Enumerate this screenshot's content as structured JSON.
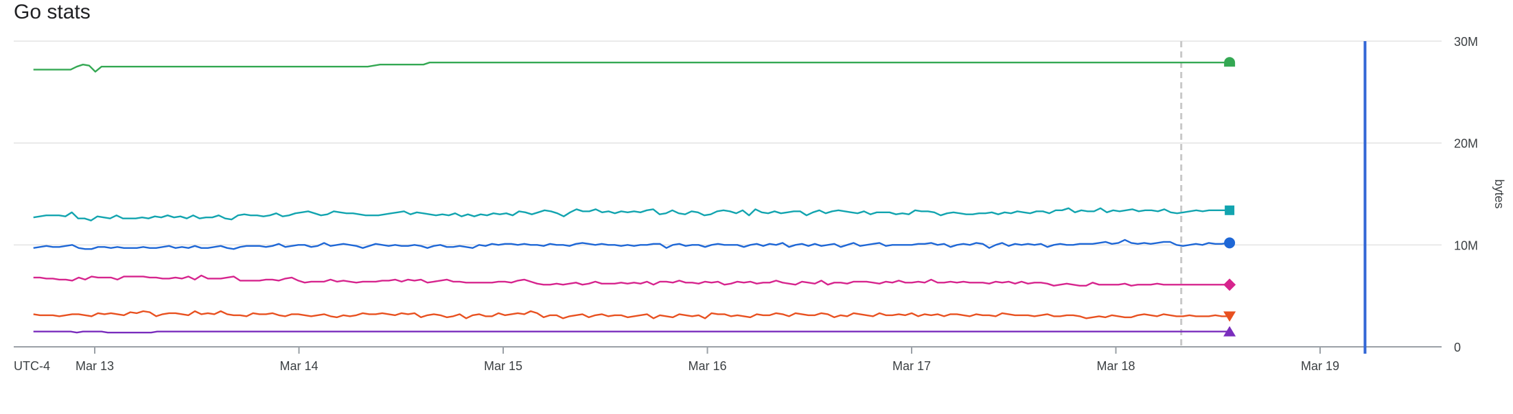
{
  "chart_data": {
    "type": "line",
    "title": "Go stats",
    "ylabel": "bytes",
    "timezone_label": "UTC-4",
    "x_tick_labels": [
      "Mar 13",
      "Mar 14",
      "Mar 15",
      "Mar 16",
      "Mar 17",
      "Mar 18",
      "Mar 19"
    ],
    "y_tick_labels": [
      "0",
      "10M",
      "20M",
      "30M"
    ],
    "ylim": [
      0,
      30000000
    ],
    "grid": true,
    "start_day": 12.7,
    "end_day": 18.55,
    "x_max_day": 19.6,
    "dashed_marker_day": 18.32,
    "current_time_day": 19.22,
    "current_time_color": "#3367d6",
    "series": [
      {
        "color": "#34a853",
        "marker": "semicircle",
        "values": [
          27.2,
          27.2,
          27.2,
          27.2,
          27.2,
          27.2,
          27.2,
          27.5,
          27.7,
          27.6,
          27.0,
          27.5,
          27.5,
          27.5,
          27.5,
          27.5,
          27.5,
          27.5,
          27.5,
          27.5,
          27.5,
          27.5,
          27.5,
          27.5,
          27.5,
          27.5,
          27.5,
          27.5,
          27.5,
          27.5,
          27.5,
          27.5,
          27.5,
          27.5,
          27.5,
          27.5,
          27.5,
          27.5,
          27.5,
          27.5,
          27.5,
          27.5,
          27.5,
          27.5,
          27.5,
          27.5,
          27.5,
          27.5,
          27.5,
          27.5,
          27.5,
          27.5,
          27.5,
          27.5,
          27.5,
          27.6,
          27.7,
          27.7,
          27.7,
          27.7,
          27.7,
          27.7,
          27.7,
          27.7,
          27.9,
          27.9,
          27.9,
          27.9,
          27.9,
          27.9,
          27.9,
          27.9,
          27.9,
          27.9,
          27.9,
          27.9,
          27.9,
          27.9,
          27.9,
          27.9,
          27.9,
          27.9,
          27.9,
          27.9,
          27.9,
          27.9,
          27.9,
          27.9,
          27.9,
          27.9,
          27.9,
          27.9,
          27.9,
          27.9,
          27.9,
          27.9,
          27.9,
          27.9,
          27.9,
          27.9,
          27.9,
          27.9,
          27.9,
          27.9,
          27.9,
          27.9,
          27.9,
          27.9,
          27.9,
          27.9,
          27.9,
          27.9,
          27.9,
          27.9,
          27.9,
          27.9,
          27.9,
          27.9,
          27.9,
          27.9,
          27.9,
          27.9,
          27.9,
          27.9,
          27.9,
          27.9,
          27.9,
          27.9,
          27.9,
          27.9,
          27.9,
          27.9,
          27.9,
          27.9,
          27.9,
          27.9,
          27.9,
          27.9,
          27.9,
          27.9,
          27.9,
          27.9,
          27.9,
          27.9,
          27.9,
          27.9,
          27.9,
          27.9,
          27.9,
          27.9,
          27.9,
          27.9,
          27.9,
          27.9,
          27.9,
          27.9,
          27.9,
          27.9,
          27.9,
          27.9,
          27.9,
          27.9,
          27.9,
          27.9,
          27.9,
          27.9,
          27.9,
          27.9,
          27.9,
          27.9,
          27.9,
          27.9,
          27.9,
          27.9,
          27.9,
          27.9,
          27.9,
          27.9,
          27.9,
          27.9,
          27.9,
          27.9,
          27.9,
          27.9,
          27.9,
          27.9,
          27.9,
          27.9,
          27.9,
          27.9,
          27.9,
          27.9,
          27.9,
          27.9
        ]
      },
      {
        "color": "#12a4af",
        "marker": "square",
        "values": [
          12.7,
          12.8,
          12.9,
          12.9,
          12.9,
          12.8,
          13.2,
          12.6,
          12.6,
          12.4,
          12.8,
          12.7,
          12.6,
          12.9,
          12.6,
          12.6,
          12.6,
          12.7,
          12.6,
          12.8,
          12.7,
          12.9,
          12.7,
          12.8,
          12.6,
          12.9,
          12.6,
          12.7,
          12.7,
          12.9,
          12.6,
          12.5,
          12.9,
          13.0,
          12.9,
          12.9,
          12.8,
          12.9,
          13.1,
          12.8,
          12.9,
          13.1,
          13.2,
          13.3,
          13.1,
          12.9,
          13.0,
          13.3,
          13.2,
          13.1,
          13.1,
          13.0,
          12.9,
          12.9,
          12.9,
          13.0,
          13.1,
          13.2,
          13.3,
          13.0,
          13.2,
          13.1,
          13.0,
          12.9,
          13.0,
          12.9,
          13.1,
          12.8,
          13.0,
          12.8,
          13.0,
          12.9,
          13.1,
          13.0,
          13.1,
          12.9,
          13.3,
          13.2,
          13.0,
          13.2,
          13.4,
          13.3,
          13.1,
          12.8,
          13.2,
          13.5,
          13.3,
          13.3,
          13.5,
          13.2,
          13.3,
          13.1,
          13.3,
          13.2,
          13.3,
          13.2,
          13.4,
          13.5,
          13.0,
          13.1,
          13.4,
          13.1,
          13.0,
          13.3,
          13.2,
          12.9,
          13.0,
          13.3,
          13.4,
          13.3,
          13.1,
          13.4,
          12.9,
          13.5,
          13.2,
          13.1,
          13.3,
          13.1,
          13.2,
          13.3,
          13.3,
          12.9,
          13.2,
          13.4,
          13.1,
          13.3,
          13.4,
          13.3,
          13.2,
          13.1,
          13.3,
          13.0,
          13.2,
          13.2,
          13.2,
          13.0,
          13.1,
          13.0,
          13.4,
          13.3,
          13.3,
          13.2,
          12.9,
          13.1,
          13.2,
          13.1,
          13.0,
          13.0,
          13.1,
          13.1,
          13.2,
          13.0,
          13.2,
          13.1,
          13.3,
          13.2,
          13.1,
          13.3,
          13.3,
          13.1,
          13.4,
          13.4,
          13.6,
          13.2,
          13.4,
          13.3,
          13.3,
          13.6,
          13.2,
          13.4,
          13.3,
          13.4,
          13.5,
          13.3,
          13.4,
          13.4,
          13.3,
          13.5,
          13.2,
          13.1,
          13.2,
          13.3,
          13.4,
          13.3,
          13.4,
          13.4,
          13.4,
          13.4
        ]
      },
      {
        "color": "#1e67d6",
        "marker": "circle",
        "values": [
          9.7,
          9.8,
          9.9,
          9.8,
          9.8,
          9.9,
          10.0,
          9.7,
          9.6,
          9.6,
          9.8,
          9.8,
          9.7,
          9.8,
          9.7,
          9.7,
          9.7,
          9.8,
          9.7,
          9.7,
          9.8,
          9.9,
          9.7,
          9.8,
          9.7,
          9.9,
          9.7,
          9.7,
          9.8,
          9.9,
          9.7,
          9.6,
          9.8,
          9.9,
          9.9,
          9.9,
          9.8,
          9.9,
          10.1,
          9.8,
          9.9,
          10.0,
          10.0,
          9.8,
          9.9,
          10.2,
          9.9,
          10.0,
          10.1,
          10.0,
          9.9,
          9.7,
          9.9,
          10.1,
          10.0,
          9.9,
          10.0,
          9.9,
          9.9,
          10.0,
          9.9,
          9.7,
          9.9,
          10.0,
          9.8,
          9.8,
          9.9,
          9.8,
          9.7,
          10.0,
          9.9,
          10.1,
          10.0,
          10.1,
          10.1,
          10.0,
          10.1,
          10.0,
          10.0,
          9.9,
          10.1,
          10.0,
          10.0,
          9.9,
          10.1,
          10.2,
          10.1,
          10.0,
          10.1,
          10.0,
          10.0,
          9.9,
          10.0,
          9.9,
          10.0,
          10.0,
          10.1,
          10.1,
          9.7,
          10.0,
          10.1,
          9.9,
          10.0,
          10.0,
          9.8,
          10.0,
          10.1,
          10.0,
          10.0,
          10.0,
          9.8,
          10.0,
          10.1,
          9.9,
          10.1,
          10.0,
          10.2,
          9.8,
          10.0,
          10.1,
          9.9,
          10.1,
          9.9,
          10.0,
          10.1,
          9.8,
          10.0,
          10.2,
          9.9,
          10.0,
          10.1,
          10.2,
          9.9,
          10.0,
          10.0,
          10.0,
          10.0,
          10.1,
          10.1,
          10.2,
          10.0,
          10.1,
          9.8,
          10.0,
          10.1,
          10.0,
          10.2,
          10.1,
          9.7,
          10.0,
          10.2,
          9.9,
          10.1,
          10.0,
          10.1,
          10.0,
          10.1,
          9.8,
          10.0,
          10.1,
          10.0,
          10.0,
          10.1,
          10.1,
          10.1,
          10.2,
          10.3,
          10.1,
          10.2,
          10.5,
          10.2,
          10.1,
          10.2,
          10.1,
          10.2,
          10.3,
          10.3,
          10.0,
          9.9,
          10.0,
          10.1,
          10.0,
          10.2,
          10.1,
          10.1,
          10.2
        ]
      },
      {
        "color": "#d6248d",
        "marker": "diamond",
        "values": [
          6.8,
          6.8,
          6.7,
          6.7,
          6.6,
          6.6,
          6.5,
          6.8,
          6.6,
          6.9,
          6.8,
          6.8,
          6.8,
          6.6,
          6.9,
          6.9,
          6.9,
          6.9,
          6.8,
          6.8,
          6.7,
          6.7,
          6.8,
          6.7,
          6.9,
          6.6,
          7.0,
          6.7,
          6.7,
          6.7,
          6.8,
          6.9,
          6.5,
          6.5,
          6.5,
          6.5,
          6.6,
          6.6,
          6.5,
          6.7,
          6.8,
          6.5,
          6.3,
          6.4,
          6.4,
          6.4,
          6.6,
          6.4,
          6.5,
          6.4,
          6.3,
          6.4,
          6.4,
          6.4,
          6.5,
          6.5,
          6.6,
          6.4,
          6.6,
          6.5,
          6.6,
          6.3,
          6.4,
          6.5,
          6.6,
          6.4,
          6.4,
          6.3,
          6.3,
          6.3,
          6.3,
          6.3,
          6.4,
          6.4,
          6.3,
          6.5,
          6.6,
          6.4,
          6.2,
          6.1,
          6.1,
          6.2,
          6.1,
          6.2,
          6.3,
          6.1,
          6.2,
          6.4,
          6.2,
          6.2,
          6.2,
          6.3,
          6.2,
          6.3,
          6.2,
          6.4,
          6.1,
          6.4,
          6.4,
          6.3,
          6.5,
          6.3,
          6.3,
          6.2,
          6.4,
          6.3,
          6.4,
          6.1,
          6.2,
          6.4,
          6.3,
          6.4,
          6.2,
          6.3,
          6.3,
          6.5,
          6.3,
          6.2,
          6.1,
          6.4,
          6.3,
          6.2,
          6.5,
          6.1,
          6.3,
          6.3,
          6.2,
          6.4,
          6.4,
          6.4,
          6.3,
          6.2,
          6.4,
          6.3,
          6.5,
          6.3,
          6.3,
          6.4,
          6.3,
          6.6,
          6.3,
          6.3,
          6.4,
          6.3,
          6.4,
          6.3,
          6.3,
          6.3,
          6.2,
          6.4,
          6.3,
          6.4,
          6.2,
          6.4,
          6.2,
          6.3,
          6.3,
          6.2,
          6.0,
          6.1,
          6.2,
          6.1,
          6.0,
          6.0,
          6.3,
          6.1,
          6.1,
          6.1,
          6.1,
          6.2,
          6.0,
          6.1,
          6.1,
          6.1,
          6.2,
          6.1,
          6.1,
          6.1,
          6.1,
          6.1,
          6.1,
          6.1,
          6.1,
          6.1,
          6.1,
          6.1
        ]
      },
      {
        "color": "#e8501f",
        "marker": "triangle-down",
        "values": [
          3.2,
          3.1,
          3.1,
          3.1,
          3.0,
          3.1,
          3.2,
          3.2,
          3.1,
          3.0,
          3.3,
          3.2,
          3.3,
          3.2,
          3.1,
          3.4,
          3.3,
          3.5,
          3.4,
          3.0,
          3.2,
          3.3,
          3.3,
          3.2,
          3.1,
          3.5,
          3.2,
          3.3,
          3.2,
          3.5,
          3.2,
          3.1,
          3.1,
          3.0,
          3.3,
          3.2,
          3.2,
          3.3,
          3.1,
          3.0,
          3.2,
          3.2,
          3.1,
          3.0,
          3.1,
          3.2,
          3.0,
          2.9,
          3.1,
          3.0,
          3.1,
          3.3,
          3.2,
          3.2,
          3.3,
          3.2,
          3.1,
          3.3,
          3.2,
          3.3,
          2.9,
          3.1,
          3.2,
          3.1,
          2.9,
          3.0,
          3.2,
          2.8,
          3.1,
          3.2,
          3.0,
          3.0,
          3.3,
          3.1,
          3.2,
          3.3,
          3.2,
          3.5,
          3.3,
          2.9,
          3.1,
          3.1,
          2.8,
          3.0,
          3.1,
          3.2,
          2.9,
          3.1,
          3.2,
          3.0,
          3.1,
          3.1,
          2.9,
          3.0,
          3.1,
          3.2,
          2.8,
          3.1,
          3.0,
          2.9,
          3.2,
          3.1,
          3.0,
          3.1,
          2.8,
          3.3,
          3.2,
          3.2,
          3.0,
          3.1,
          3.0,
          2.9,
          3.2,
          3.1,
          3.1,
          3.3,
          3.2,
          3.0,
          3.3,
          3.2,
          3.1,
          3.1,
          3.3,
          3.2,
          2.9,
          3.1,
          3.0,
          3.3,
          3.2,
          3.1,
          3.0,
          3.3,
          3.1,
          3.1,
          3.2,
          3.1,
          3.3,
          3.0,
          3.2,
          3.1,
          3.2,
          3.0,
          3.2,
          3.2,
          3.1,
          3.0,
          3.2,
          3.1,
          3.1,
          3.0,
          3.3,
          3.2,
          3.1,
          3.1,
          3.1,
          3.0,
          3.1,
          3.2,
          3.0,
          3.0,
          3.1,
          3.1,
          3.0,
          2.8,
          2.9,
          3.0,
          2.9,
          3.1,
          3.0,
          2.9,
          2.9,
          3.1,
          3.2,
          3.1,
          3.0,
          3.2,
          3.1,
          3.0,
          3.0,
          3.1,
          3.0,
          3.0,
          3.0,
          3.1,
          3.0,
          3.0
        ]
      },
      {
        "color": "#7a2dbd",
        "marker": "triangle-up",
        "values": [
          1.5,
          1.5,
          1.5,
          1.5,
          1.5,
          1.5,
          1.5,
          1.4,
          1.5,
          1.5,
          1.5,
          1.5,
          1.4,
          1.4,
          1.4,
          1.4,
          1.4,
          1.4,
          1.4,
          1.4,
          1.5,
          1.5,
          1.5,
          1.5,
          1.5,
          1.5,
          1.5,
          1.5,
          1.5,
          1.5,
          1.5,
          1.5,
          1.5,
          1.5,
          1.5,
          1.5,
          1.5,
          1.5,
          1.5,
          1.5,
          1.5,
          1.5,
          1.5,
          1.5,
          1.5,
          1.5,
          1.5,
          1.5,
          1.5,
          1.5,
          1.5,
          1.5,
          1.5,
          1.5,
          1.5,
          1.5,
          1.5,
          1.5,
          1.5,
          1.5,
          1.5,
          1.5,
          1.5,
          1.5,
          1.5,
          1.5,
          1.5,
          1.5,
          1.5,
          1.5,
          1.5,
          1.5,
          1.5,
          1.5,
          1.5,
          1.5,
          1.5,
          1.5,
          1.5,
          1.5,
          1.5,
          1.5,
          1.5,
          1.5,
          1.5,
          1.5,
          1.5,
          1.5,
          1.5,
          1.5,
          1.5,
          1.5,
          1.5,
          1.5,
          1.5,
          1.5,
          1.5,
          1.5,
          1.5,
          1.5,
          1.5,
          1.5,
          1.5,
          1.5,
          1.5,
          1.5,
          1.5,
          1.5,
          1.5,
          1.5,
          1.5,
          1.5,
          1.5,
          1.5,
          1.5,
          1.5,
          1.5,
          1.5,
          1.5,
          1.5,
          1.5,
          1.5,
          1.5,
          1.5,
          1.5,
          1.5,
          1.5,
          1.5,
          1.5,
          1.5,
          1.5,
          1.5,
          1.5,
          1.5,
          1.5,
          1.5,
          1.5,
          1.5,
          1.5,
          1.5,
          1.5,
          1.5,
          1.5,
          1.5,
          1.5,
          1.5,
          1.5,
          1.5,
          1.5,
          1.5,
          1.5,
          1.5,
          1.5,
          1.5,
          1.5,
          1.5,
          1.5,
          1.5,
          1.5,
          1.5,
          1.5,
          1.5,
          1.5,
          1.5,
          1.5,
          1.5,
          1.5,
          1.5,
          1.5,
          1.5,
          1.5,
          1.5,
          1.5,
          1.5,
          1.5,
          1.5,
          1.5,
          1.5,
          1.5,
          1.5,
          1.5,
          1.5,
          1.5,
          1.5,
          1.5,
          1.5,
          1.5,
          1.5,
          1.5,
          1.5,
          1.5,
          1.5,
          1.5,
          1.5
        ]
      }
    ]
  }
}
